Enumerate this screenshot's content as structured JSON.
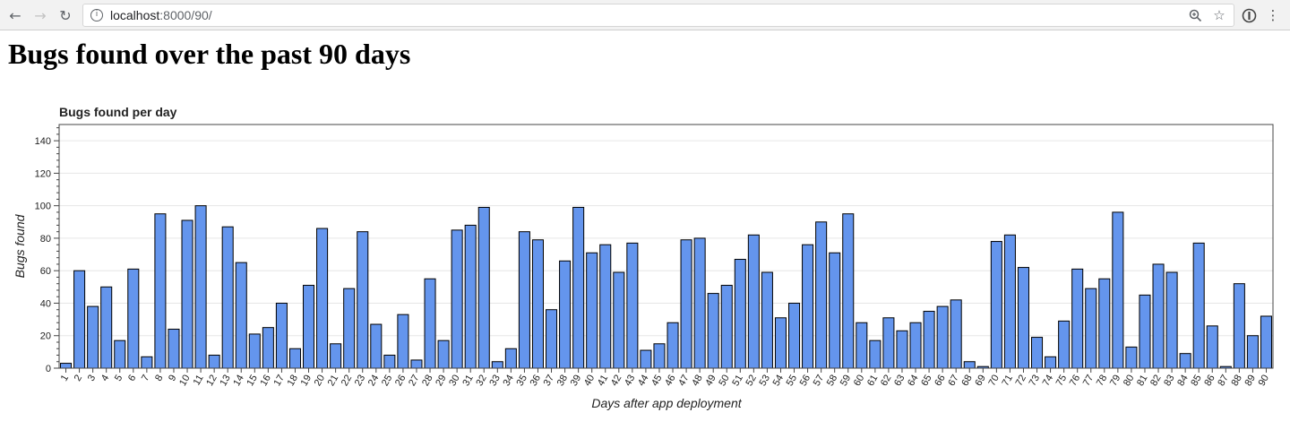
{
  "browser": {
    "url_host": "localhost",
    "url_path": ":8000/90/",
    "icons": {
      "back": "arrow-left-icon",
      "forward": "arrow-right-icon",
      "reload": "reload-icon",
      "info": "info-icon",
      "zoom": "zoom-icon",
      "bookmark": "star-icon",
      "extension": "extension-icon",
      "menu": "menu-dots-icon"
    }
  },
  "page": {
    "heading": "Bugs found over the past 90 days"
  },
  "chart_data": {
    "type": "bar",
    "title": "Bugs found per day",
    "xlabel": "Days after app deployment",
    "ylabel": "Bugs found",
    "ylim": [
      0,
      150
    ],
    "yticks": [
      0,
      20,
      40,
      60,
      80,
      100,
      120,
      140
    ],
    "grid": "horizontal",
    "bar_color": "#6495ed",
    "bar_edge_color": "#000000",
    "categories": [
      "1",
      "2",
      "3",
      "4",
      "5",
      "6",
      "7",
      "8",
      "9",
      "10",
      "11",
      "12",
      "13",
      "14",
      "15",
      "16",
      "17",
      "18",
      "19",
      "20",
      "21",
      "22",
      "23",
      "24",
      "25",
      "26",
      "27",
      "28",
      "29",
      "30",
      "31",
      "32",
      "33",
      "34",
      "35",
      "36",
      "37",
      "38",
      "39",
      "40",
      "41",
      "42",
      "43",
      "44",
      "45",
      "46",
      "47",
      "48",
      "49",
      "50",
      "51",
      "52",
      "53",
      "54",
      "55",
      "56",
      "57",
      "58",
      "59",
      "60",
      "61",
      "62",
      "63",
      "64",
      "65",
      "66",
      "67",
      "68",
      "69",
      "70",
      "71",
      "72",
      "73",
      "74",
      "75",
      "76",
      "77",
      "78",
      "79",
      "80",
      "81",
      "82",
      "83",
      "84",
      "85",
      "86",
      "87",
      "88",
      "89",
      "90"
    ],
    "values": [
      3,
      60,
      38,
      50,
      17,
      61,
      7,
      95,
      24,
      91,
      100,
      8,
      87,
      65,
      21,
      25,
      40,
      12,
      51,
      86,
      15,
      49,
      84,
      27,
      8,
      33,
      5,
      55,
      17,
      85,
      88,
      99,
      4,
      12,
      84,
      79,
      36,
      66,
      99,
      71,
      76,
      59,
      77,
      11,
      15,
      28,
      79,
      80,
      46,
      51,
      67,
      82,
      59,
      31,
      40,
      76,
      90,
      71,
      95,
      28,
      17,
      31,
      23,
      28,
      35,
      38,
      42,
      4,
      1,
      78,
      82,
      62,
      19,
      7,
      29,
      61,
      49,
      55,
      96,
      13,
      45,
      64,
      59,
      9,
      77,
      26,
      1,
      52,
      20,
      32
    ]
  }
}
